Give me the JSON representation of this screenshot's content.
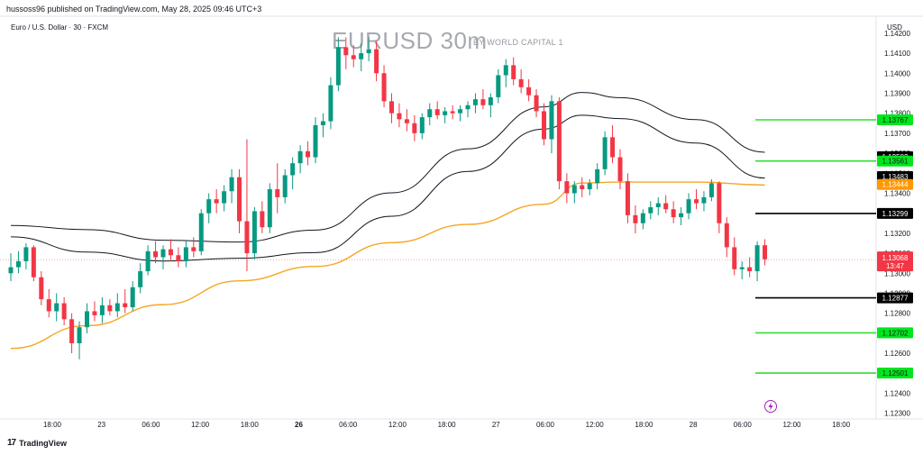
{
  "header": {
    "published": "hussoss96 published on TradingView.com, May 28, 2025 09:46 UTC+3",
    "symbol": "Euro / U.S. Dollar · 30 · FXCM",
    "title": "EURUSD 30m",
    "byline": "BY WORLD CAPITAL 1"
  },
  "footer": {
    "brand": "TradingView",
    "brand_mark": "17"
  },
  "chart_data": {
    "type": "candlestick",
    "currency": "USD",
    "ylim": [
      1.12285,
      1.14285
    ],
    "y_ticks": [
      "1.14200",
      "1.14100",
      "1.14000",
      "1.13900",
      "1.13800",
      "1.13700",
      "1.13600",
      "1.13500",
      "1.13400",
      "1.13300",
      "1.13200",
      "1.13100",
      "1.13000",
      "1.12900",
      "1.12800",
      "1.12700",
      "1.12600",
      "1.12500",
      "1.12400",
      "1.12300"
    ],
    "x_ticks": [
      {
        "label": "18:00",
        "bold": false
      },
      {
        "label": "23",
        "bold": false
      },
      {
        "label": "06:00",
        "bold": false
      },
      {
        "label": "12:00",
        "bold": false
      },
      {
        "label": "18:00",
        "bold": false
      },
      {
        "label": "26",
        "bold": true
      },
      {
        "label": "06:00",
        "bold": false
      },
      {
        "label": "12:00",
        "bold": false
      },
      {
        "label": "18:00",
        "bold": false
      },
      {
        "label": "27",
        "bold": false
      },
      {
        "label": "06:00",
        "bold": false
      },
      {
        "label": "12:00",
        "bold": false
      },
      {
        "label": "18:00",
        "bold": false
      },
      {
        "label": "28",
        "bold": false
      },
      {
        "label": "06:00",
        "bold": false
      },
      {
        "label": "12:00",
        "bold": false
      },
      {
        "label": "18:00",
        "bold": false
      }
    ],
    "up_color": "#089981",
    "down_color": "#f23645",
    "candles": [
      [
        1.13,
        1.131,
        1.1296,
        1.1303
      ],
      [
        1.1303,
        1.1311,
        1.13,
        1.1306
      ],
      [
        1.1306,
        1.1315,
        1.1302,
        1.1313
      ],
      [
        1.1313,
        1.1314,
        1.1296,
        1.1298
      ],
      [
        1.1298,
        1.1301,
        1.1284,
        1.1287
      ],
      [
        1.1287,
        1.1292,
        1.1278,
        1.1281
      ],
      [
        1.1281,
        1.129,
        1.1276,
        1.1285
      ],
      [
        1.1285,
        1.1288,
        1.1274,
        1.1277
      ],
      [
        1.1277,
        1.128,
        1.126,
        1.1265
      ],
      [
        1.1265,
        1.1276,
        1.1257,
        1.1273
      ],
      [
        1.1273,
        1.1285,
        1.127,
        1.1281
      ],
      [
        1.1281,
        1.1286,
        1.1276,
        1.1279
      ],
      [
        1.1279,
        1.1288,
        1.1275,
        1.1284
      ],
      [
        1.1284,
        1.1287,
        1.1279,
        1.1281
      ],
      [
        1.1281,
        1.129,
        1.1278,
        1.1285
      ],
      [
        1.1285,
        1.1292,
        1.128,
        1.1283
      ],
      [
        1.1283,
        1.1296,
        1.1281,
        1.1293
      ],
      [
        1.1293,
        1.1305,
        1.129,
        1.1301
      ],
      [
        1.1301,
        1.1314,
        1.1299,
        1.1311
      ],
      [
        1.1311,
        1.1316,
        1.1305,
        1.1308
      ],
      [
        1.1308,
        1.1314,
        1.1302,
        1.1312
      ],
      [
        1.1312,
        1.1317,
        1.1306,
        1.1309
      ],
      [
        1.1309,
        1.1313,
        1.1303,
        1.1306
      ],
      [
        1.1306,
        1.1316,
        1.1303,
        1.1313
      ],
      [
        1.1313,
        1.1318,
        1.1308,
        1.1311
      ],
      [
        1.1311,
        1.1332,
        1.1309,
        1.133
      ],
      [
        1.133,
        1.134,
        1.1325,
        1.1337
      ],
      [
        1.1337,
        1.1342,
        1.133,
        1.1335
      ],
      [
        1.1335,
        1.1344,
        1.1331,
        1.1341
      ],
      [
        1.1341,
        1.1352,
        1.1335,
        1.1348
      ],
      [
        1.1348,
        1.1352,
        1.132,
        1.1326
      ],
      [
        1.1326,
        1.1367,
        1.1301,
        1.131
      ],
      [
        1.131,
        1.1333,
        1.1307,
        1.1331
      ],
      [
        1.1331,
        1.1336,
        1.132,
        1.1323
      ],
      [
        1.1323,
        1.1345,
        1.132,
        1.1342
      ],
      [
        1.1342,
        1.1355,
        1.133,
        1.1338
      ],
      [
        1.1338,
        1.1352,
        1.1335,
        1.1349
      ],
      [
        1.1349,
        1.1358,
        1.1342,
        1.1355
      ],
      [
        1.1355,
        1.1364,
        1.135,
        1.1361
      ],
      [
        1.1361,
        1.1366,
        1.1354,
        1.1358
      ],
      [
        1.1358,
        1.1378,
        1.1355,
        1.1374
      ],
      [
        1.1374,
        1.138,
        1.1368,
        1.1376
      ],
      [
        1.1376,
        1.1398,
        1.1372,
        1.1394
      ],
      [
        1.1394,
        1.1418,
        1.1391,
        1.1413
      ],
      [
        1.1413,
        1.1418,
        1.1402,
        1.1409
      ],
      [
        1.1409,
        1.1414,
        1.1403,
        1.1407
      ],
      [
        1.1407,
        1.1415,
        1.1401,
        1.141
      ],
      [
        1.141,
        1.1418,
        1.1406,
        1.1412
      ],
      [
        1.1412,
        1.1416,
        1.1396,
        1.14
      ],
      [
        1.14,
        1.1404,
        1.1383,
        1.1386
      ],
      [
        1.1386,
        1.139,
        1.1375,
        1.138
      ],
      [
        1.138,
        1.1385,
        1.1373,
        1.1377
      ],
      [
        1.1377,
        1.1382,
        1.1371,
        1.1375
      ],
      [
        1.1375,
        1.1379,
        1.1366,
        1.137
      ],
      [
        1.137,
        1.138,
        1.1367,
        1.1378
      ],
      [
        1.1378,
        1.1385,
        1.1374,
        1.1382
      ],
      [
        1.1382,
        1.1386,
        1.1377,
        1.1379
      ],
      [
        1.1379,
        1.1383,
        1.1375,
        1.1381
      ],
      [
        1.1381,
        1.1384,
        1.1377,
        1.138
      ],
      [
        1.138,
        1.1384,
        1.1376,
        1.1382
      ],
      [
        1.1382,
        1.1386,
        1.1378,
        1.1384
      ],
      [
        1.1384,
        1.139,
        1.138,
        1.1387
      ],
      [
        1.1387,
        1.1392,
        1.1382,
        1.1384
      ],
      [
        1.1384,
        1.139,
        1.1378,
        1.1388
      ],
      [
        1.1388,
        1.1402,
        1.1385,
        1.1399
      ],
      [
        1.1399,
        1.1407,
        1.1393,
        1.1404
      ],
      [
        1.1404,
        1.1408,
        1.1394,
        1.1397
      ],
      [
        1.1397,
        1.1402,
        1.139,
        1.1393
      ],
      [
        1.1393,
        1.1397,
        1.1386,
        1.1389
      ],
      [
        1.1389,
        1.1392,
        1.1378,
        1.1381
      ],
      [
        1.1381,
        1.1385,
        1.1364,
        1.1367
      ],
      [
        1.1367,
        1.1389,
        1.136,
        1.1386
      ],
      [
        1.1386,
        1.1388,
        1.1342,
        1.1346
      ],
      [
        1.1346,
        1.135,
        1.1335,
        1.134
      ],
      [
        1.134,
        1.1346,
        1.1335,
        1.1344
      ],
      [
        1.1344,
        1.1348,
        1.1338,
        1.1342
      ],
      [
        1.1342,
        1.1347,
        1.1339,
        1.1345
      ],
      [
        1.1345,
        1.1355,
        1.1342,
        1.1352
      ],
      [
        1.1352,
        1.1371,
        1.1349,
        1.1368
      ],
      [
        1.1368,
        1.1374,
        1.1355,
        1.1358
      ],
      [
        1.1358,
        1.1362,
        1.1342,
        1.1346
      ],
      [
        1.1346,
        1.135,
        1.1325,
        1.1329
      ],
      [
        1.1329,
        1.1334,
        1.132,
        1.1325
      ],
      [
        1.1325,
        1.1332,
        1.1322,
        1.133
      ],
      [
        1.133,
        1.1336,
        1.1327,
        1.1333
      ],
      [
        1.1333,
        1.1338,
        1.1329,
        1.1335
      ],
      [
        1.1335,
        1.1339,
        1.133,
        1.1332
      ],
      [
        1.1332,
        1.1336,
        1.1325,
        1.1328
      ],
      [
        1.1328,
        1.1333,
        1.1324,
        1.133
      ],
      [
        1.133,
        1.134,
        1.1327,
        1.1337
      ],
      [
        1.1337,
        1.1342,
        1.1332,
        1.1335
      ],
      [
        1.1335,
        1.1341,
        1.1331,
        1.1338
      ],
      [
        1.1338,
        1.1347,
        1.1336,
        1.1345
      ],
      [
        1.1345,
        1.1346,
        1.132,
        1.1325
      ],
      [
        1.1325,
        1.1328,
        1.1308,
        1.1313
      ],
      [
        1.1313,
        1.1318,
        1.1299,
        1.1302
      ],
      [
        1.1302,
        1.1306,
        1.1297,
        1.1303
      ],
      [
        1.1303,
        1.1308,
        1.1298,
        1.1301
      ],
      [
        1.1301,
        1.1316,
        1.1296,
        1.1314
      ],
      [
        1.1314,
        1.1317,
        1.1304,
        1.1307
      ]
    ],
    "moving_averages": [
      {
        "name": "upper-band",
        "color": "#131722",
        "points": [
          [
            0,
            1.13239
          ],
          [
            10,
            1.13218
          ],
          [
            20,
            1.13165
          ],
          [
            30,
            1.13156
          ],
          [
            40,
            1.13216
          ],
          [
            50,
            1.13402
          ],
          [
            60,
            1.13622
          ],
          [
            70,
            1.13832
          ],
          [
            75,
            1.13904
          ],
          [
            80,
            1.13878
          ],
          [
            90,
            1.13768
          ],
          [
            99,
            1.13605
          ]
        ]
      },
      {
        "name": "lower-band",
        "color": "#131722",
        "points": [
          [
            0,
            1.13182
          ],
          [
            10,
            1.13106
          ],
          [
            20,
            1.13061
          ],
          [
            30,
            1.13075
          ],
          [
            40,
            1.13103
          ],
          [
            50,
            1.13285
          ],
          [
            60,
            1.13509
          ],
          [
            70,
            1.13721
          ],
          [
            75,
            1.1379
          ],
          [
            80,
            1.13773
          ],
          [
            90,
            1.13651
          ],
          [
            99,
            1.13476
          ]
        ]
      },
      {
        "name": "ma-orange",
        "color": "#f5a623",
        "points": [
          [
            0,
            1.12624
          ],
          [
            10,
            1.12738
          ],
          [
            20,
            1.12843
          ],
          [
            30,
            1.12962
          ],
          [
            40,
            1.13034
          ],
          [
            50,
            1.13153
          ],
          [
            60,
            1.13244
          ],
          [
            70,
            1.13345
          ],
          [
            75,
            1.13451
          ],
          [
            80,
            1.13456
          ],
          [
            90,
            1.13456
          ],
          [
            99,
            1.13441
          ]
        ]
      }
    ],
    "current_price": {
      "value": "1.13068",
      "countdown": "13:47",
      "color": "#f23645"
    },
    "levels": [
      {
        "value": "1.13767",
        "color": "#00e61d",
        "text_color": "#131722",
        "line": true
      },
      {
        "value": "1.13583",
        "color": "#000000",
        "text_color": "#ffffff",
        "line": false
      },
      {
        "value": "1.13561",
        "color": "#00e61d",
        "text_color": "#131722",
        "line": true
      },
      {
        "value": "1.13483",
        "color": "#000000",
        "text_color": "#ffffff",
        "line": false
      },
      {
        "value": "1.13444",
        "color": "#ff9800",
        "text_color": "#ffffff",
        "line": false
      },
      {
        "value": "1.13299",
        "color": "#000000",
        "text_color": "#ffffff",
        "line": true
      },
      {
        "value": "1.12877",
        "color": "#000000",
        "text_color": "#ffffff",
        "line": true
      },
      {
        "value": "1.12702",
        "color": "#00e61d",
        "text_color": "#131722",
        "line": true
      },
      {
        "value": "1.12501",
        "color": "#00e61d",
        "text_color": "#131722",
        "line": true
      }
    ],
    "alert_icon": "lightning-bolt-icon",
    "alert_color": "#9c27b0",
    "grid": false
  }
}
